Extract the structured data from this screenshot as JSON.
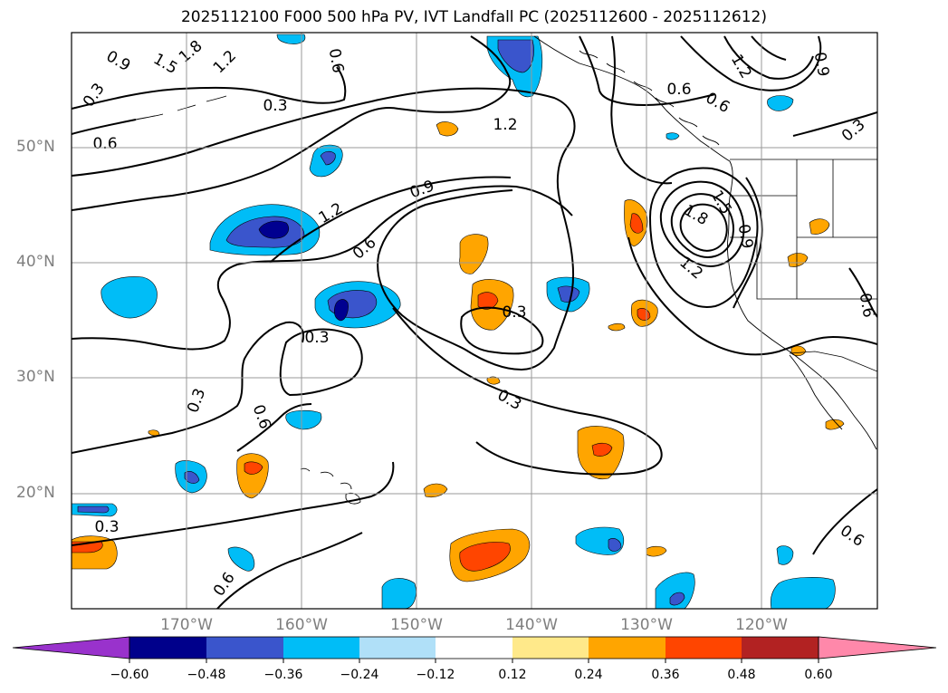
{
  "title": "2025112100 F000 500 hPa PV, IVT Landfall PC (2025112600 - 2025112612)",
  "map": {
    "lat_labels": [
      "50°N",
      "40°N",
      "30°N",
      "20°N"
    ],
    "lon_labels": [
      "170°W",
      "160°W",
      "150°W",
      "140°W",
      "130°W",
      "120°W"
    ],
    "contour_labels": [
      "0.9",
      "1.5",
      "1.8",
      "1.2",
      "0.3",
      "0.6",
      "0.6",
      "1.2",
      "0.9",
      "0.6",
      "1.2",
      "0.6",
      "0.6",
      "0.3",
      "0.3",
      "0.6",
      "0.3",
      "0.3",
      "0.6",
      "1.5",
      "1.8",
      "1.2",
      "0.9",
      "0.6",
      "0.3",
      "0.3",
      "0.3",
      "0.6",
      "0.9",
      "1.2",
      "0.6",
      "0.6"
    ],
    "shading_colors": {
      "neg_strong": "#000090",
      "neg_mid": "#3a55cc",
      "neg_light": "#00bdf7",
      "pos_light": "#ffa500",
      "pos_mid": "#ff4500"
    }
  },
  "colorbar": {
    "ticks": [
      "−0.60",
      "−0.48",
      "−0.36",
      "−0.24",
      "−0.12",
      "0.12",
      "0.24",
      "0.36",
      "0.48",
      "0.60"
    ],
    "colors": [
      "#9932cc",
      "#8b00ff",
      "#00008b",
      "#3a55cc",
      "#00bdf7",
      "#b0e0f8",
      "#ffffff",
      "#ffe98a",
      "#ffa500",
      "#ff4500",
      "#b22222",
      "#ff88aa"
    ]
  }
}
